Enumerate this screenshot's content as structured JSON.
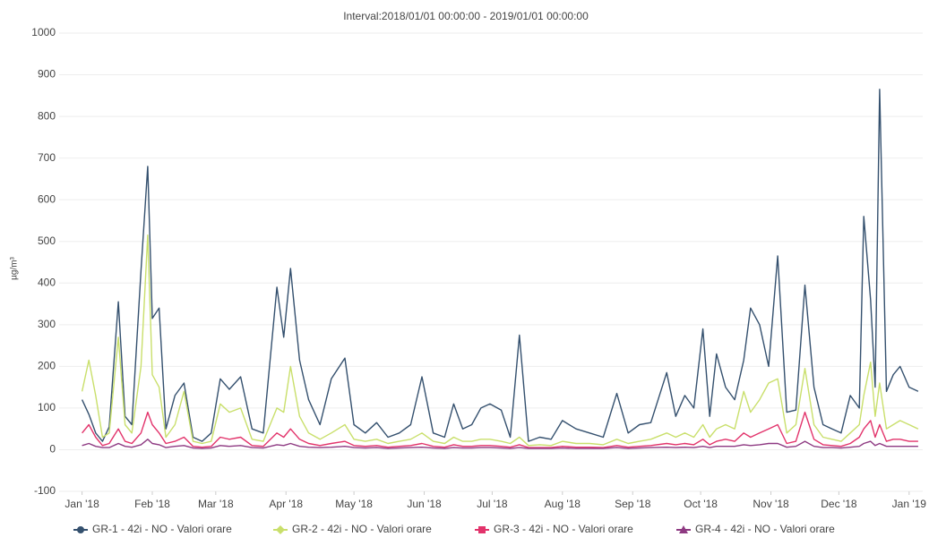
{
  "chart_data": {
    "type": "line",
    "title": "Interval:2018/01/01 00:00:00 - 2019/01/01 00:00:00",
    "y_label": "µg/m³",
    "x": [
      0,
      3,
      6,
      9,
      12,
      16,
      19,
      22,
      26,
      29,
      31,
      34,
      37,
      41,
      45,
      49,
      53,
      57,
      61,
      65,
      70,
      75,
      80,
      86,
      89,
      92,
      96,
      100,
      105,
      110,
      116,
      120,
      125,
      130,
      135,
      140,
      145,
      150,
      155,
      160,
      164,
      168,
      172,
      176,
      180,
      185,
      189,
      193,
      197,
      202,
      207,
      212,
      218,
      224,
      230,
      236,
      241,
      246,
      251,
      258,
      262,
      266,
      270,
      274,
      277,
      280,
      284,
      288,
      292,
      295,
      299,
      303,
      307,
      311,
      315,
      319,
      323,
      327,
      331,
      335,
      339,
      343,
      345,
      348,
      350,
      352,
      355,
      358,
      361,
      365,
      369
    ],
    "series": [
      {
        "name": "GR-1 - 42i - NO - Valori orare",
        "color": "#34506e",
        "values": [
          120,
          85,
          40,
          20,
          55,
          355,
          80,
          60,
          430,
          680,
          315,
          340,
          50,
          130,
          160,
          30,
          20,
          40,
          170,
          145,
          175,
          50,
          40,
          390,
          270,
          435,
          215,
          120,
          60,
          170,
          220,
          60,
          40,
          65,
          30,
          40,
          60,
          175,
          40,
          30,
          110,
          50,
          60,
          100,
          110,
          95,
          30,
          275,
          20,
          30,
          25,
          70,
          50,
          40,
          30,
          135,
          40,
          60,
          65,
          185,
          80,
          130,
          100,
          290,
          80,
          230,
          150,
          120,
          215,
          340,
          300,
          200,
          465,
          90,
          95,
          395,
          150,
          60,
          50,
          40,
          130,
          100,
          560,
          360,
          150,
          865,
          140,
          180,
          200,
          150,
          140
        ]
      },
      {
        "name": "GR-2 - 42i - NO - Valori orare",
        "color": "#c9df6b",
        "values": [
          140,
          215,
          130,
          30,
          40,
          270,
          60,
          40,
          200,
          515,
          180,
          150,
          30,
          60,
          140,
          20,
          15,
          20,
          110,
          90,
          100,
          25,
          20,
          100,
          90,
          200,
          80,
          40,
          25,
          40,
          60,
          25,
          20,
          25,
          15,
          20,
          25,
          40,
          20,
          15,
          30,
          20,
          20,
          25,
          25,
          20,
          15,
          30,
          10,
          12,
          10,
          20,
          15,
          15,
          12,
          25,
          15,
          20,
          25,
          40,
          30,
          40,
          30,
          60,
          30,
          50,
          60,
          50,
          140,
          90,
          120,
          160,
          170,
          40,
          60,
          195,
          60,
          30,
          25,
          20,
          40,
          60,
          130,
          210,
          80,
          160,
          50,
          60,
          70,
          60,
          50
        ]
      },
      {
        "name": "GR-3 - 42i - NO - Valori orare",
        "color": "#e2336b",
        "values": [
          40,
          60,
          30,
          10,
          15,
          50,
          20,
          15,
          40,
          90,
          60,
          40,
          15,
          20,
          30,
          8,
          6,
          8,
          30,
          25,
          30,
          10,
          8,
          40,
          30,
          50,
          25,
          15,
          10,
          15,
          20,
          10,
          8,
          10,
          6,
          8,
          10,
          15,
          8,
          6,
          12,
          8,
          8,
          10,
          10,
          8,
          6,
          12,
          5,
          5,
          5,
          8,
          6,
          6,
          5,
          10,
          6,
          8,
          10,
          15,
          12,
          15,
          12,
          25,
          12,
          20,
          25,
          20,
          40,
          30,
          40,
          50,
          60,
          15,
          20,
          90,
          25,
          12,
          10,
          8,
          15,
          30,
          50,
          70,
          30,
          60,
          20,
          25,
          25,
          20,
          20
        ]
      },
      {
        "name": "GR-4 - 42i - NO - Valori orare",
        "color": "#8e3a82",
        "values": [
          10,
          15,
          8,
          5,
          5,
          15,
          8,
          6,
          12,
          25,
          15,
          12,
          5,
          8,
          10,
          4,
          3,
          4,
          10,
          8,
          10,
          5,
          4,
          12,
          10,
          15,
          8,
          6,
          5,
          6,
          8,
          5,
          4,
          5,
          3,
          4,
          5,
          6,
          4,
          3,
          5,
          4,
          4,
          5,
          5,
          4,
          3,
          5,
          3,
          3,
          3,
          4,
          3,
          3,
          3,
          5,
          3,
          4,
          5,
          6,
          5,
          6,
          5,
          8,
          5,
          8,
          8,
          8,
          12,
          10,
          12,
          15,
          15,
          6,
          8,
          20,
          8,
          5,
          5,
          4,
          6,
          8,
          15,
          20,
          10,
          15,
          8,
          8,
          8,
          8,
          8
        ]
      }
    ],
    "xlim": [
      -3,
      371
    ],
    "xticks": [
      {
        "value": 0,
        "label": "Jan '18"
      },
      {
        "value": 31,
        "label": "Feb '18"
      },
      {
        "value": 59,
        "label": "Mar '18"
      },
      {
        "value": 90,
        "label": "Apr '18"
      },
      {
        "value": 120,
        "label": "May '18"
      },
      {
        "value": 151,
        "label": "Jun '18"
      },
      {
        "value": 181,
        "label": "Jul '18"
      },
      {
        "value": 212,
        "label": "Aug '18"
      },
      {
        "value": 243,
        "label": "Sep '18"
      },
      {
        "value": 273,
        "label": "Oct '18"
      },
      {
        "value": 304,
        "label": "Nov '18"
      },
      {
        "value": 334,
        "label": "Dec '18"
      },
      {
        "value": 365,
        "label": "Jan '19"
      }
    ],
    "ylim": [
      -100,
      1000
    ],
    "yticks": [
      -100,
      0,
      100,
      200,
      300,
      400,
      500,
      600,
      700,
      800,
      900,
      1000
    ],
    "grid": true
  }
}
